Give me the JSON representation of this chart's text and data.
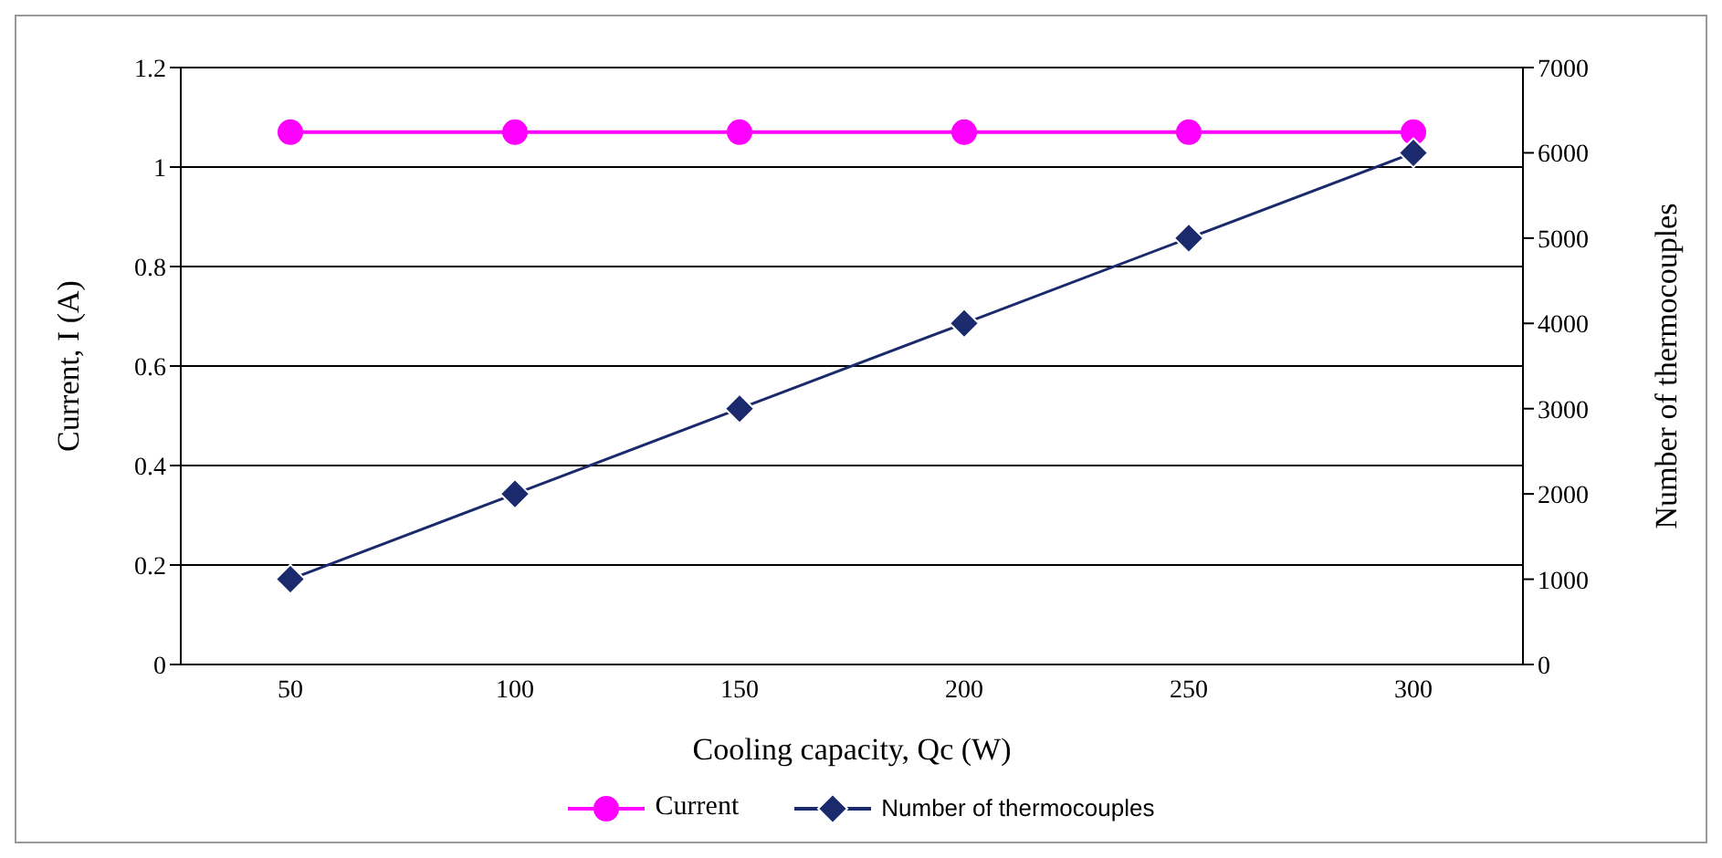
{
  "chart_data": {
    "type": "line",
    "xlabel": "Cooling capacity, Qc (W)",
    "ylabel": "Current, I (A)",
    "y2label": "Number of thermocouples",
    "categories": [
      "50",
      "100",
      "150",
      "200",
      "250",
      "300"
    ],
    "series": [
      {
        "name": "Current",
        "color": "#ff00ff",
        "marker": "circle",
        "values": [
          1.07,
          1.07,
          1.07,
          1.07,
          1.07,
          1.07
        ]
      },
      {
        "name": "Number of thermocouples",
        "color": "#1a2a6c",
        "marker": "diamond",
        "axis": "y2",
        "values": [
          1000,
          2000,
          3000,
          4000,
          5000,
          6000
        ]
      }
    ],
    "ylim": [
      0,
      1.2
    ],
    "yticks": [
      0,
      0.2,
      0.4,
      0.6,
      0.8,
      1,
      1.2
    ],
    "y2lim": [
      0,
      7000
    ],
    "y2ticks": [
      0,
      1000,
      2000,
      3000,
      4000,
      5000,
      6000,
      7000
    ],
    "grid": "y",
    "legend": "bottom"
  }
}
